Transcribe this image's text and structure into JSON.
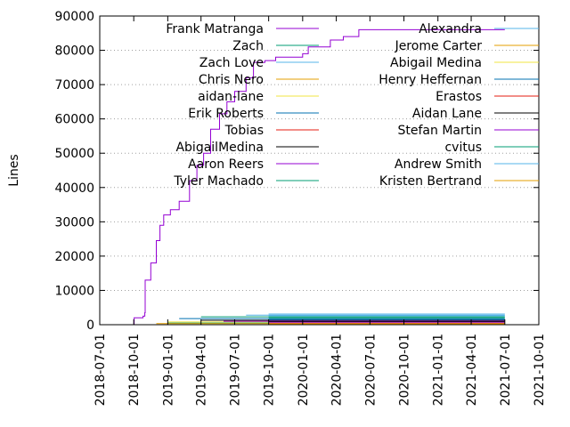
{
  "chart_data": {
    "type": "line",
    "title": "",
    "xlabel": "",
    "ylabel": "Lines",
    "ylim": [
      0,
      90000
    ],
    "xlim": [
      "2018-07-01",
      "2021-10-01"
    ],
    "y_ticks": [
      "0",
      "10000",
      "20000",
      "30000",
      "40000",
      "50000",
      "60000",
      "70000",
      "80000",
      "90000"
    ],
    "x_ticks": [
      "2018-07-01",
      "2018-10-01",
      "2019-01-01",
      "2019-04-01",
      "2019-07-01",
      "2019-10-01",
      "2020-01-01",
      "2020-04-01",
      "2020-07-01",
      "2020-10-01",
      "2021-01-01",
      "2021-04-01",
      "2021-07-01",
      "2021-10-01"
    ],
    "grid": "horizontal dotted gridlines at y ticks",
    "legend_position": "top, two columns",
    "series": [
      {
        "name": "Frank Matranga",
        "color": "#9400d3",
        "points": [
          [
            "2018-08-01",
            0
          ],
          [
            "2018-10-01",
            0
          ],
          [
            "2018-10-02",
            2000
          ],
          [
            "2018-10-26",
            2500
          ],
          [
            "2018-10-31",
            3500
          ],
          [
            "2018-11-01",
            13000
          ],
          [
            "2018-11-06",
            13000
          ],
          [
            "2018-11-16",
            18000
          ],
          [
            "2018-12-01",
            24500
          ],
          [
            "2018-12-11",
            29000
          ],
          [
            "2018-12-21",
            32000
          ],
          [
            "2019-01-08",
            33500
          ],
          [
            "2019-02-01",
            36000
          ],
          [
            "2019-03-01",
            42000
          ],
          [
            "2019-03-21",
            46500
          ],
          [
            "2019-04-08",
            50000
          ],
          [
            "2019-04-27",
            57000
          ],
          [
            "2019-05-21",
            61500
          ],
          [
            "2019-06-10",
            65000
          ],
          [
            "2019-07-01",
            68000
          ],
          [
            "2019-08-01",
            72000
          ],
          [
            "2019-08-21",
            76500
          ],
          [
            "2019-09-21",
            77000
          ],
          [
            "2019-10-20",
            78000
          ],
          [
            "2020-01-01",
            79000
          ],
          [
            "2020-01-16",
            81000
          ],
          [
            "2020-03-01",
            81000
          ],
          [
            "2020-03-16",
            83000
          ],
          [
            "2020-04-20",
            84000
          ],
          [
            "2020-06-01",
            86000
          ],
          [
            "2021-07-01",
            86000
          ]
        ]
      },
      {
        "name": "Zach",
        "color": "#009e73",
        "points": [
          [
            "2019-01-01",
            500
          ],
          [
            "2021-07-01",
            500
          ]
        ]
      },
      {
        "name": "Zach Love",
        "color": "#56b4e9",
        "points": [
          [
            "2019-08-01",
            2800
          ],
          [
            "2021-07-01",
            2800
          ]
        ]
      },
      {
        "name": "Chris Nero",
        "color": "#e69f00",
        "points": [
          [
            "2018-12-01",
            300
          ],
          [
            "2021-07-01",
            300
          ]
        ]
      },
      {
        "name": "aidan-lane",
        "color": "#f0e442",
        "points": [
          [
            "2019-01-01",
            800
          ],
          [
            "2021-07-01",
            800
          ]
        ]
      },
      {
        "name": "Erik Roberts",
        "color": "#0072b2",
        "points": [
          [
            "2019-02-01",
            1800
          ],
          [
            "2021-07-01",
            1800
          ]
        ]
      },
      {
        "name": "Tobias",
        "color": "#e51e10",
        "points": [
          [
            "2019-10-01",
            400
          ],
          [
            "2021-07-01",
            400
          ]
        ]
      },
      {
        "name": "AbigailMedina",
        "color": "#000000",
        "points": [
          [
            "2019-04-01",
            1300
          ],
          [
            "2021-07-01",
            1300
          ]
        ]
      },
      {
        "name": "Aaron Reers",
        "color": "#9400d3",
        "points": [
          [
            "2019-06-01",
            1000
          ],
          [
            "2021-07-01",
            1000
          ]
        ]
      },
      {
        "name": "Tyler Machado",
        "color": "#009e73",
        "points": [
          [
            "2019-04-01",
            2300
          ],
          [
            "2021-07-01",
            2300
          ]
        ]
      },
      {
        "name": "Alexandra",
        "color": "#56b4e9",
        "points": [
          [
            "2019-10-01",
            3100
          ],
          [
            "2021-07-01",
            3100
          ]
        ]
      },
      {
        "name": "Jerome Carter",
        "color": "#e69f00",
        "points": [
          [
            "2019-10-01",
            200
          ],
          [
            "2021-07-01",
            200
          ]
        ]
      },
      {
        "name": "Abigail Medina",
        "color": "#f0e442",
        "points": [
          [
            "2019-10-01",
            600
          ],
          [
            "2021-07-01",
            600
          ]
        ]
      },
      {
        "name": "Henry Heffernan",
        "color": "#0072b2",
        "points": [
          [
            "2019-10-01",
            1500
          ],
          [
            "2021-07-01",
            1500
          ]
        ]
      },
      {
        "name": "Erastos",
        "color": "#e51e10",
        "points": [
          [
            "2019-10-01",
            100
          ],
          [
            "2021-07-01",
            100
          ]
        ]
      },
      {
        "name": "Aidan Lane",
        "color": "#000000",
        "points": [
          [
            "2019-10-01",
            900
          ],
          [
            "2021-07-01",
            900
          ]
        ]
      },
      {
        "name": "Stefan Martin",
        "color": "#9400d3",
        "points": [
          [
            "2019-10-01",
            700
          ],
          [
            "2021-07-01",
            700
          ]
        ]
      },
      {
        "name": "cvitus",
        "color": "#009e73",
        "points": [
          [
            "2019-10-01",
            2000
          ],
          [
            "2021-07-01",
            2000
          ]
        ]
      },
      {
        "name": "Andrew Smith",
        "color": "#56b4e9",
        "points": [
          [
            "2019-10-01",
            2600
          ],
          [
            "2021-07-01",
            2600
          ]
        ]
      },
      {
        "name": "Kristen Bertrand",
        "color": "#e69f00",
        "points": [
          [
            "2019-10-01",
            150
          ],
          [
            "2021-07-01",
            150
          ]
        ]
      }
    ]
  }
}
